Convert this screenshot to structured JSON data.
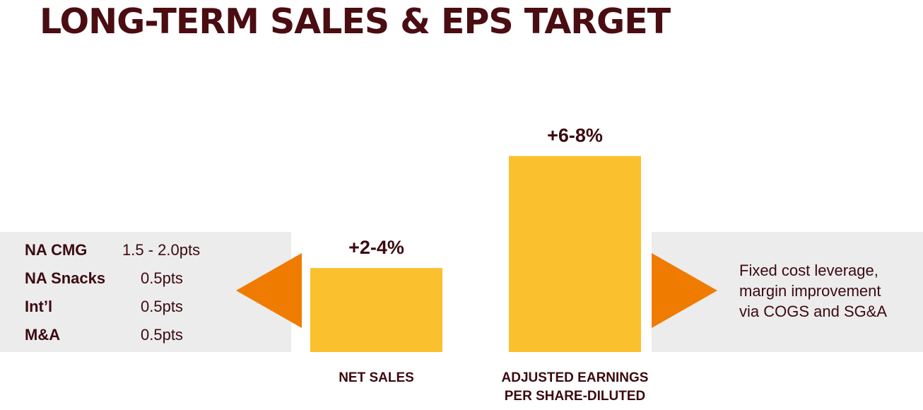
{
  "title": "LONG-TERM SALES & EPS TARGET",
  "breakdown": [
    {
      "label": "NA CMG",
      "value": "1.5 - 2.0pts"
    },
    {
      "label": "NA Snacks",
      "value": "0.5pts"
    },
    {
      "label": "Int’l",
      "value": "0.5pts"
    },
    {
      "label": "M&A",
      "value": "0.5pts"
    }
  ],
  "note": {
    "lines": [
      "Fixed cost leverage,",
      "margin improvement",
      "via COGS and SG&A"
    ]
  },
  "colors": {
    "title": "#4a0d12",
    "text": "#3b0a10",
    "bar": "#fbc02d",
    "arrow": "#ef7c00",
    "band": "#ececec"
  },
  "chart_data": {
    "type": "bar",
    "categories": [
      "NET SALES",
      "ADJUSTED EARNINGS PER SHARE-DILUTED"
    ],
    "category_lines": [
      [
        "NET SALES"
      ],
      [
        "ADJUSTED EARNINGS",
        "PER SHARE-DILUTED"
      ]
    ],
    "values": [
      3,
      7
    ],
    "value_ranges": [
      [
        2,
        4
      ],
      [
        6,
        8
      ]
    ],
    "data_labels": [
      "+2-4%",
      "+6-8%"
    ],
    "unit": "%",
    "ylim": [
      0,
      7.7
    ],
    "grid": false,
    "legend": "none"
  }
}
